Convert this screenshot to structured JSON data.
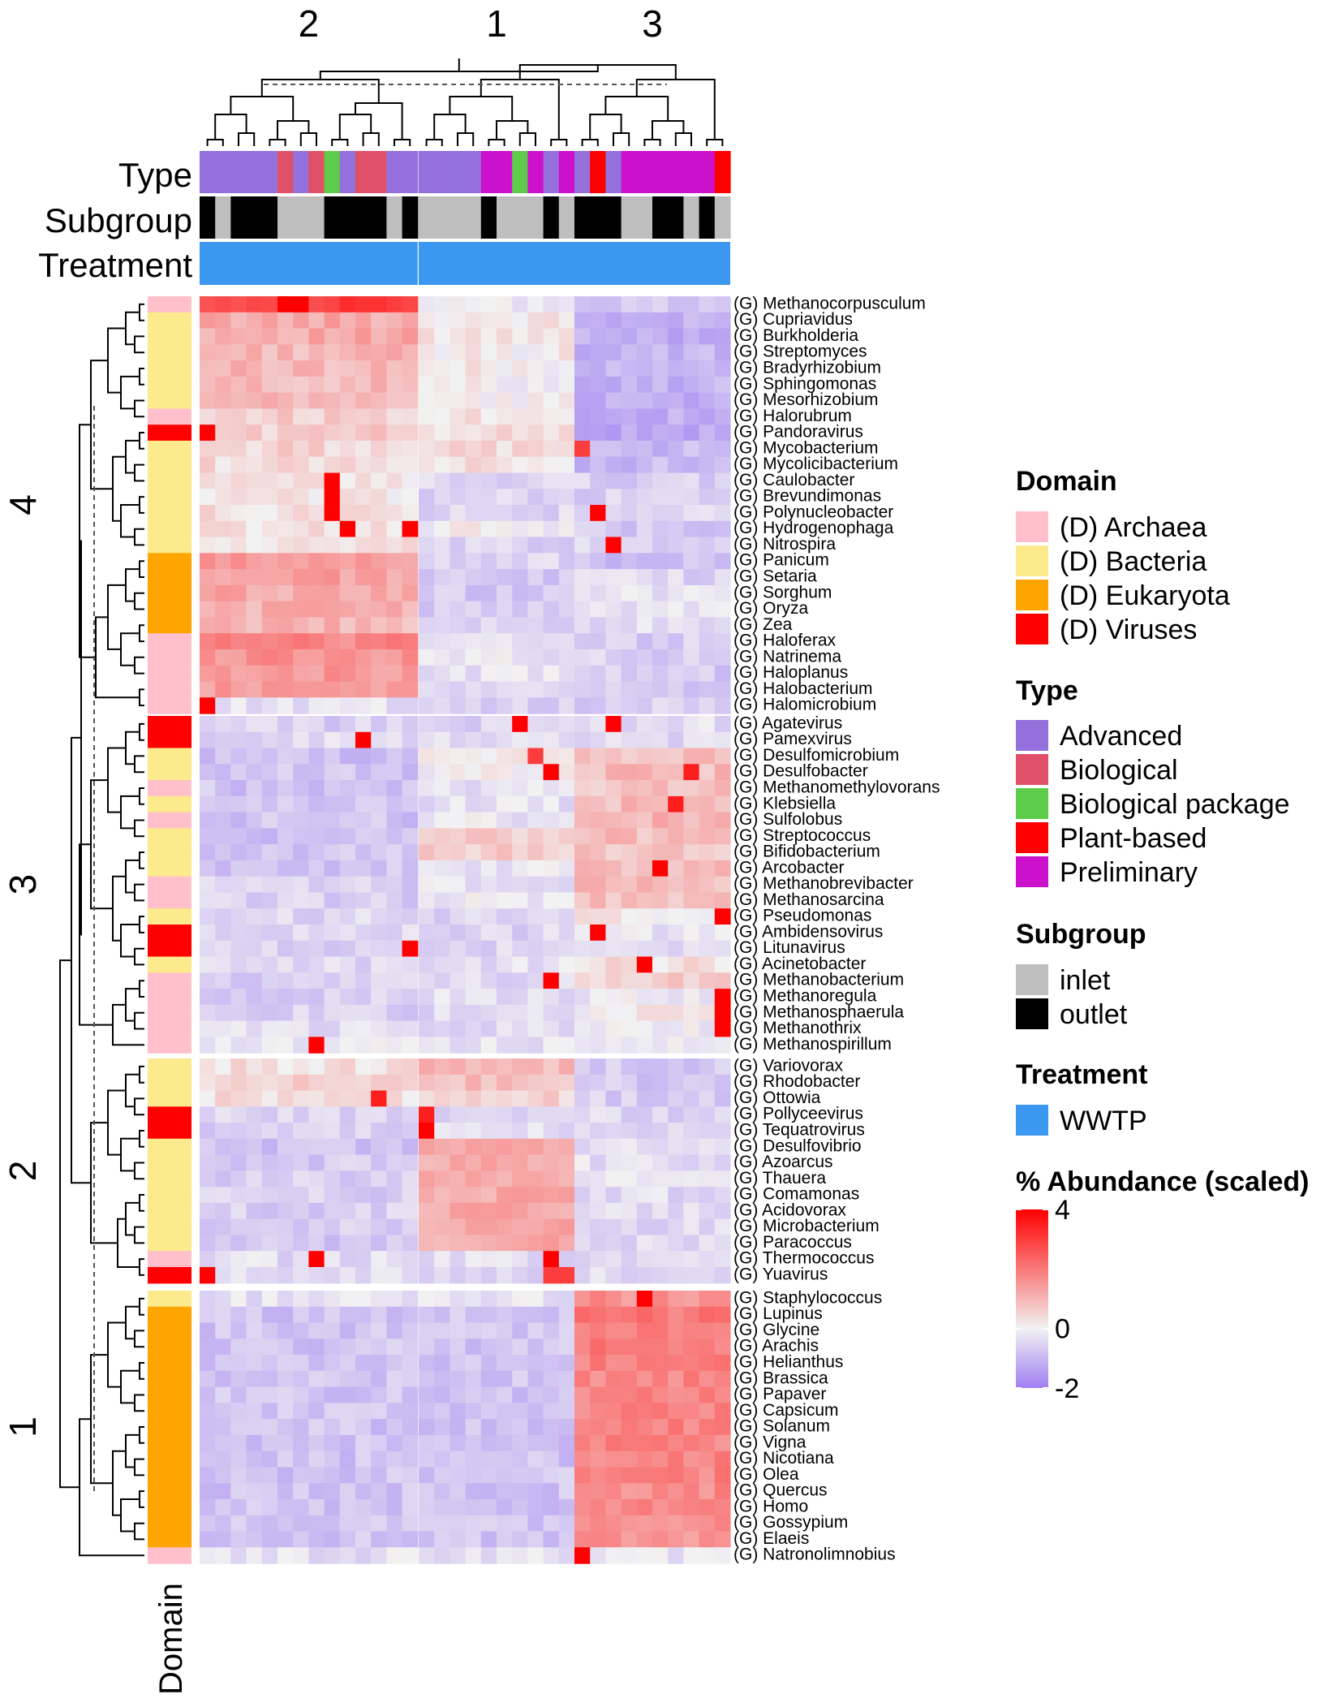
{
  "chart_data": {
    "type": "heatmap",
    "title": "",
    "value_label": "% Abundance (scaled)",
    "color_scale": {
      "min": -2,
      "mid": 0,
      "max": 4,
      "low_color": "#9f7ff2",
      "mid_color": "#f2f2f2",
      "high_color": "#ff0000",
      "ticks": [
        "4",
        "0",
        "-2"
      ]
    },
    "column_clusters": [
      {
        "label": "2",
        "n": 14
      },
      {
        "label": "1",
        "n": 10
      },
      {
        "label": "3",
        "n": 10
      }
    ],
    "row_clusters": [
      {
        "label": "4",
        "n": 26
      },
      {
        "label": "3",
        "n": 21
      },
      {
        "label": "2",
        "n": 14
      },
      {
        "label": "1",
        "n": 17
      }
    ],
    "annotation_titles": {
      "type": "Type",
      "subgroup": "Subgroup",
      "treatment": "Treatment",
      "domain": "Domain"
    },
    "column_annotations": {
      "type": [
        "Advanced",
        "Advanced",
        "Advanced",
        "Advanced",
        "Advanced",
        "Biological",
        "Advanced",
        "Biological",
        "Biological package",
        "Advanced",
        "Biological",
        "Biological",
        "Advanced",
        "Advanced",
        "Advanced",
        "Advanced",
        "Advanced",
        "Advanced",
        "Preliminary",
        "Preliminary",
        "Biological package",
        "Preliminary",
        "Advanced",
        "Preliminary",
        "Advanced",
        "Plant-based",
        "Advanced",
        "Preliminary",
        "Preliminary",
        "Preliminary",
        "Preliminary",
        "Preliminary",
        "Preliminary",
        "Plant-based"
      ],
      "subgroup": [
        "outlet",
        "inlet",
        "outlet",
        "outlet",
        "outlet",
        "inlet",
        "inlet",
        "inlet",
        "outlet",
        "outlet",
        "outlet",
        "outlet",
        "inlet",
        "outlet",
        "inlet",
        "inlet",
        "inlet",
        "inlet",
        "outlet",
        "inlet",
        "inlet",
        "inlet",
        "outlet",
        "inlet",
        "outlet",
        "outlet",
        "outlet",
        "inlet",
        "inlet",
        "outlet",
        "outlet",
        "inlet",
        "outlet",
        "inlet"
      ],
      "treatment": "WWTP"
    },
    "rows": [
      {
        "genus": "(G) Methanocorpusculum",
        "domain": "Archaea"
      },
      {
        "genus": "(G) Cupriavidus",
        "domain": "Bacteria"
      },
      {
        "genus": "(G) Burkholderia",
        "domain": "Bacteria"
      },
      {
        "genus": "(G) Streptomyces",
        "domain": "Bacteria"
      },
      {
        "genus": "(G) Bradyrhizobium",
        "domain": "Bacteria"
      },
      {
        "genus": "(G) Sphingomonas",
        "domain": "Bacteria"
      },
      {
        "genus": "(G) Mesorhizobium",
        "domain": "Bacteria"
      },
      {
        "genus": "(G) Halorubrum",
        "domain": "Archaea"
      },
      {
        "genus": "(G) Pandoravirus",
        "domain": "Viruses"
      },
      {
        "genus": "(G) Mycobacterium",
        "domain": "Bacteria"
      },
      {
        "genus": "(G) Mycolicibacterium",
        "domain": "Bacteria"
      },
      {
        "genus": "(G) Caulobacter",
        "domain": "Bacteria"
      },
      {
        "genus": "(G) Brevundimonas",
        "domain": "Bacteria"
      },
      {
        "genus": "(G) Polynucleobacter",
        "domain": "Bacteria"
      },
      {
        "genus": "(G) Hydrogenophaga",
        "domain": "Bacteria"
      },
      {
        "genus": "(G) Nitrospira",
        "domain": "Bacteria"
      },
      {
        "genus": "(G) Panicum",
        "domain": "Eukaryota"
      },
      {
        "genus": "(G) Setaria",
        "domain": "Eukaryota"
      },
      {
        "genus": "(G) Sorghum",
        "domain": "Eukaryota"
      },
      {
        "genus": "(G) Oryza",
        "domain": "Eukaryota"
      },
      {
        "genus": "(G) Zea",
        "domain": "Eukaryota"
      },
      {
        "genus": "(G) Haloferax",
        "domain": "Archaea"
      },
      {
        "genus": "(G) Natrinema",
        "domain": "Archaea"
      },
      {
        "genus": "(G) Haloplanus",
        "domain": "Archaea"
      },
      {
        "genus": "(G) Halobacterium",
        "domain": "Archaea"
      },
      {
        "genus": "(G) Halomicrobium",
        "domain": "Archaea"
      },
      {
        "genus": "(G) Agatevirus",
        "domain": "Viruses"
      },
      {
        "genus": "(G) Pamexvirus",
        "domain": "Viruses"
      },
      {
        "genus": "(G) Desulfomicrobium",
        "domain": "Bacteria"
      },
      {
        "genus": "(G) Desulfobacter",
        "domain": "Bacteria"
      },
      {
        "genus": "(G) Methanomethylovorans",
        "domain": "Archaea"
      },
      {
        "genus": "(G) Klebsiella",
        "domain": "Bacteria"
      },
      {
        "genus": "(G) Sulfolobus",
        "domain": "Archaea"
      },
      {
        "genus": "(G) Streptococcus",
        "domain": "Bacteria"
      },
      {
        "genus": "(G) Bifidobacterium",
        "domain": "Bacteria"
      },
      {
        "genus": "(G) Arcobacter",
        "domain": "Bacteria"
      },
      {
        "genus": "(G) Methanobrevibacter",
        "domain": "Archaea"
      },
      {
        "genus": "(G) Methanosarcina",
        "domain": "Archaea"
      },
      {
        "genus": "(G) Pseudomonas",
        "domain": "Bacteria"
      },
      {
        "genus": "(G) Ambidensovirus",
        "domain": "Viruses"
      },
      {
        "genus": "(G) Litunavirus",
        "domain": "Viruses"
      },
      {
        "genus": "(G) Acinetobacter",
        "domain": "Bacteria"
      },
      {
        "genus": "(G) Methanobacterium",
        "domain": "Archaea"
      },
      {
        "genus": "(G) Methanoregula",
        "domain": "Archaea"
      },
      {
        "genus": "(G) Methanosphaerula",
        "domain": "Archaea"
      },
      {
        "genus": "(G) Methanothrix",
        "domain": "Archaea"
      },
      {
        "genus": "(G) Methanospirillum",
        "domain": "Archaea"
      },
      {
        "genus": "(G) Variovorax",
        "domain": "Bacteria"
      },
      {
        "genus": "(G) Rhodobacter",
        "domain": "Bacteria"
      },
      {
        "genus": "(G) Ottowia",
        "domain": "Bacteria"
      },
      {
        "genus": "(G) Pollyceevirus",
        "domain": "Viruses"
      },
      {
        "genus": "(G) Tequatrovirus",
        "domain": "Viruses"
      },
      {
        "genus": "(G) Desulfovibrio",
        "domain": "Bacteria"
      },
      {
        "genus": "(G) Azoarcus",
        "domain": "Bacteria"
      },
      {
        "genus": "(G) Thauera",
        "domain": "Bacteria"
      },
      {
        "genus": "(G) Comamonas",
        "domain": "Bacteria"
      },
      {
        "genus": "(G) Acidovorax",
        "domain": "Bacteria"
      },
      {
        "genus": "(G) Microbacterium",
        "domain": "Bacteria"
      },
      {
        "genus": "(G) Paracoccus",
        "domain": "Bacteria"
      },
      {
        "genus": "(G) Thermococcus",
        "domain": "Archaea"
      },
      {
        "genus": "(G) Yuavirus",
        "domain": "Viruses"
      },
      {
        "genus": "(G) Staphylococcus",
        "domain": "Bacteria"
      },
      {
        "genus": "(G) Lupinus",
        "domain": "Eukaryota"
      },
      {
        "genus": "(G) Glycine",
        "domain": "Eukaryota"
      },
      {
        "genus": "(G) Arachis",
        "domain": "Eukaryota"
      },
      {
        "genus": "(G) Helianthus",
        "domain": "Eukaryota"
      },
      {
        "genus": "(G) Brassica",
        "domain": "Eukaryota"
      },
      {
        "genus": "(G) Papaver",
        "domain": "Eukaryota"
      },
      {
        "genus": "(G) Capsicum",
        "domain": "Eukaryota"
      },
      {
        "genus": "(G) Solanum",
        "domain": "Eukaryota"
      },
      {
        "genus": "(G) Vigna",
        "domain": "Eukaryota"
      },
      {
        "genus": "(G) Nicotiana",
        "domain": "Eukaryota"
      },
      {
        "genus": "(G) Olea",
        "domain": "Eukaryota"
      },
      {
        "genus": "(G) Quercus",
        "domain": "Eukaryota"
      },
      {
        "genus": "(G) Homo",
        "domain": "Eukaryota"
      },
      {
        "genus": "(G) Gossypium",
        "domain": "Eukaryota"
      },
      {
        "genus": "(G) Elaeis",
        "domain": "Eukaryota"
      },
      {
        "genus": "(G) Natronolimnobius",
        "domain": "Archaea"
      }
    ],
    "group_profiles": [
      [
        3.0,
        -0.2,
        -0.8
      ],
      [
        1.2,
        0.2,
        -1.2
      ],
      [
        1.2,
        0.2,
        -1.2
      ],
      [
        1.0,
        0.1,
        -1.1
      ],
      [
        1.0,
        0.1,
        -1.1
      ],
      [
        0.9,
        0.0,
        -1.1
      ],
      [
        0.9,
        0.0,
        -1.1
      ],
      [
        0.6,
        0.3,
        -1.2
      ],
      [
        0.6,
        0.4,
        -1.3
      ],
      [
        0.5,
        0.4,
        -1.0
      ],
      [
        0.4,
        0.3,
        -1.0
      ],
      [
        0.2,
        -0.5,
        -0.6
      ],
      [
        0.2,
        -0.5,
        -0.6
      ],
      [
        0.3,
        -0.5,
        -0.5
      ],
      [
        0.3,
        0.0,
        -0.7
      ],
      [
        0.2,
        -0.6,
        -0.5
      ],
      [
        1.4,
        -0.5,
        -0.9
      ],
      [
        1.3,
        -0.7,
        -0.5
      ],
      [
        1.2,
        -0.7,
        -0.3
      ],
      [
        1.1,
        -0.6,
        -0.2
      ],
      [
        1.0,
        -0.6,
        -0.4
      ],
      [
        1.8,
        -0.4,
        -0.6
      ],
      [
        1.6,
        -0.2,
        -0.6
      ],
      [
        1.5,
        -0.3,
        -0.7
      ],
      [
        1.4,
        -0.4,
        -0.7
      ],
      [
        -0.3,
        -0.6,
        -0.6
      ],
      [
        -0.6,
        -0.5,
        -0.4
      ],
      [
        -0.4,
        -0.4,
        -0.4
      ],
      [
        -0.9,
        0.1,
        0.8
      ],
      [
        -0.8,
        0.0,
        0.9
      ],
      [
        -0.8,
        -0.3,
        0.8
      ],
      [
        -0.8,
        -0.3,
        0.9
      ],
      [
        -0.8,
        -0.2,
        1.0
      ],
      [
        -0.8,
        0.6,
        0.9
      ],
      [
        -0.8,
        0.6,
        0.8
      ],
      [
        -0.8,
        -0.2,
        0.8
      ],
      [
        -0.6,
        -0.2,
        0.9
      ],
      [
        -0.6,
        -0.2,
        0.8
      ],
      [
        -0.5,
        -0.5,
        0.2
      ],
      [
        -0.5,
        -0.5,
        -0.2
      ],
      [
        -0.5,
        -0.5,
        -0.3
      ],
      [
        -0.5,
        -0.3,
        0.3
      ],
      [
        -0.6,
        -0.4,
        0.6
      ],
      [
        -0.6,
        -0.4,
        -0.1
      ],
      [
        -0.6,
        -0.4,
        0.1
      ],
      [
        -0.4,
        -0.4,
        -0.1
      ],
      [
        -0.2,
        -0.3,
        -0.2
      ],
      [
        0.3,
        1.0,
        -0.7
      ],
      [
        0.5,
        0.9,
        -0.7
      ],
      [
        0.3,
        0.5,
        -0.6
      ],
      [
        -0.5,
        -0.4,
        -0.5
      ],
      [
        -0.6,
        -0.3,
        -0.5
      ],
      [
        -0.8,
        1.1,
        -0.4
      ],
      [
        -0.7,
        1.2,
        -0.3
      ],
      [
        -0.6,
        1.3,
        -0.3
      ],
      [
        -0.6,
        1.2,
        -0.4
      ],
      [
        -0.6,
        1.2,
        -0.4
      ],
      [
        -0.7,
        1.3,
        -0.4
      ],
      [
        -0.7,
        1.2,
        -0.5
      ],
      [
        -0.4,
        -0.4,
        -0.4
      ],
      [
        -0.4,
        -0.4,
        -0.4
      ],
      [
        -0.3,
        -0.3,
        1.6
      ],
      [
        -0.8,
        -0.8,
        2.0
      ],
      [
        -0.8,
        -0.8,
        1.9
      ],
      [
        -0.8,
        -0.8,
        1.9
      ],
      [
        -0.8,
        -0.8,
        1.8
      ],
      [
        -0.8,
        -0.8,
        1.8
      ],
      [
        -0.8,
        -0.8,
        1.8
      ],
      [
        -0.8,
        -0.8,
        1.8
      ],
      [
        -0.8,
        -0.8,
        1.8
      ],
      [
        -0.8,
        -0.8,
        1.8
      ],
      [
        -0.8,
        -0.8,
        1.8
      ],
      [
        -0.8,
        -0.8,
        1.8
      ],
      [
        -0.8,
        -0.8,
        1.7
      ],
      [
        -0.8,
        -0.8,
        1.7
      ],
      [
        -0.8,
        -0.8,
        1.7
      ],
      [
        -0.8,
        -0.8,
        1.6
      ],
      [
        -0.3,
        -0.3,
        -0.2
      ]
    ],
    "hotspots": [
      [
        0,
        5,
        4
      ],
      [
        0,
        6,
        4
      ],
      [
        8,
        0,
        4
      ],
      [
        9,
        24,
        3
      ],
      [
        11,
        8,
        4
      ],
      [
        12,
        8,
        4
      ],
      [
        13,
        8,
        4
      ],
      [
        13,
        25,
        4
      ],
      [
        14,
        9,
        4
      ],
      [
        14,
        13,
        4
      ],
      [
        15,
        26,
        4
      ],
      [
        25,
        0,
        4
      ],
      [
        26,
        20,
        4
      ],
      [
        26,
        26,
        4
      ],
      [
        27,
        10,
        4
      ],
      [
        28,
        21,
        3
      ],
      [
        29,
        22,
        4
      ],
      [
        29,
        31,
        3.5
      ],
      [
        31,
        30,
        3.5
      ],
      [
        35,
        29,
        4
      ],
      [
        38,
        33,
        4
      ],
      [
        39,
        25,
        4
      ],
      [
        40,
        13,
        4
      ],
      [
        41,
        28,
        4
      ],
      [
        42,
        22,
        4
      ],
      [
        43,
        33,
        4
      ],
      [
        44,
        33,
        4
      ],
      [
        45,
        33,
        4
      ],
      [
        46,
        7,
        4
      ],
      [
        49,
        11,
        3.5
      ],
      [
        50,
        14,
        3.5
      ],
      [
        51,
        14,
        4
      ],
      [
        59,
        7,
        4
      ],
      [
        59,
        22,
        4
      ],
      [
        60,
        0,
        4
      ],
      [
        60,
        22,
        3
      ],
      [
        60,
        23,
        3
      ],
      [
        61,
        28,
        4
      ],
      [
        77,
        24,
        4
      ]
    ]
  },
  "legend": {
    "domain": {
      "title": "Domain",
      "items": [
        {
          "label": "(D) Archaea",
          "color": "#ffc0cb"
        },
        {
          "label": "(D) Bacteria",
          "color": "#fdea8c"
        },
        {
          "label": "(D) Eukaryota",
          "color": "#ffa500"
        },
        {
          "label": "(D) Viruses",
          "color": "#ff0000"
        }
      ]
    },
    "type": {
      "title": "Type",
      "items": [
        {
          "label": "Advanced",
          "color": "#9370db"
        },
        {
          "label": "Biological",
          "color": "#e05068"
        },
        {
          "label": "Biological package",
          "color": "#5dcc4a"
        },
        {
          "label": "Plant-based",
          "color": "#ff0000"
        },
        {
          "label": "Preliminary",
          "color": "#cc11cc"
        }
      ]
    },
    "subgroup": {
      "title": "Subgroup",
      "items": [
        {
          "label": "inlet",
          "color": "#bebebe"
        },
        {
          "label": "outlet",
          "color": "#000000"
        }
      ]
    },
    "treatment": {
      "title": "Treatment",
      "items": [
        {
          "label": "WWTP",
          "color": "#3c97f0"
        }
      ]
    },
    "scale": {
      "title": "% Abundance (scaled)"
    }
  }
}
